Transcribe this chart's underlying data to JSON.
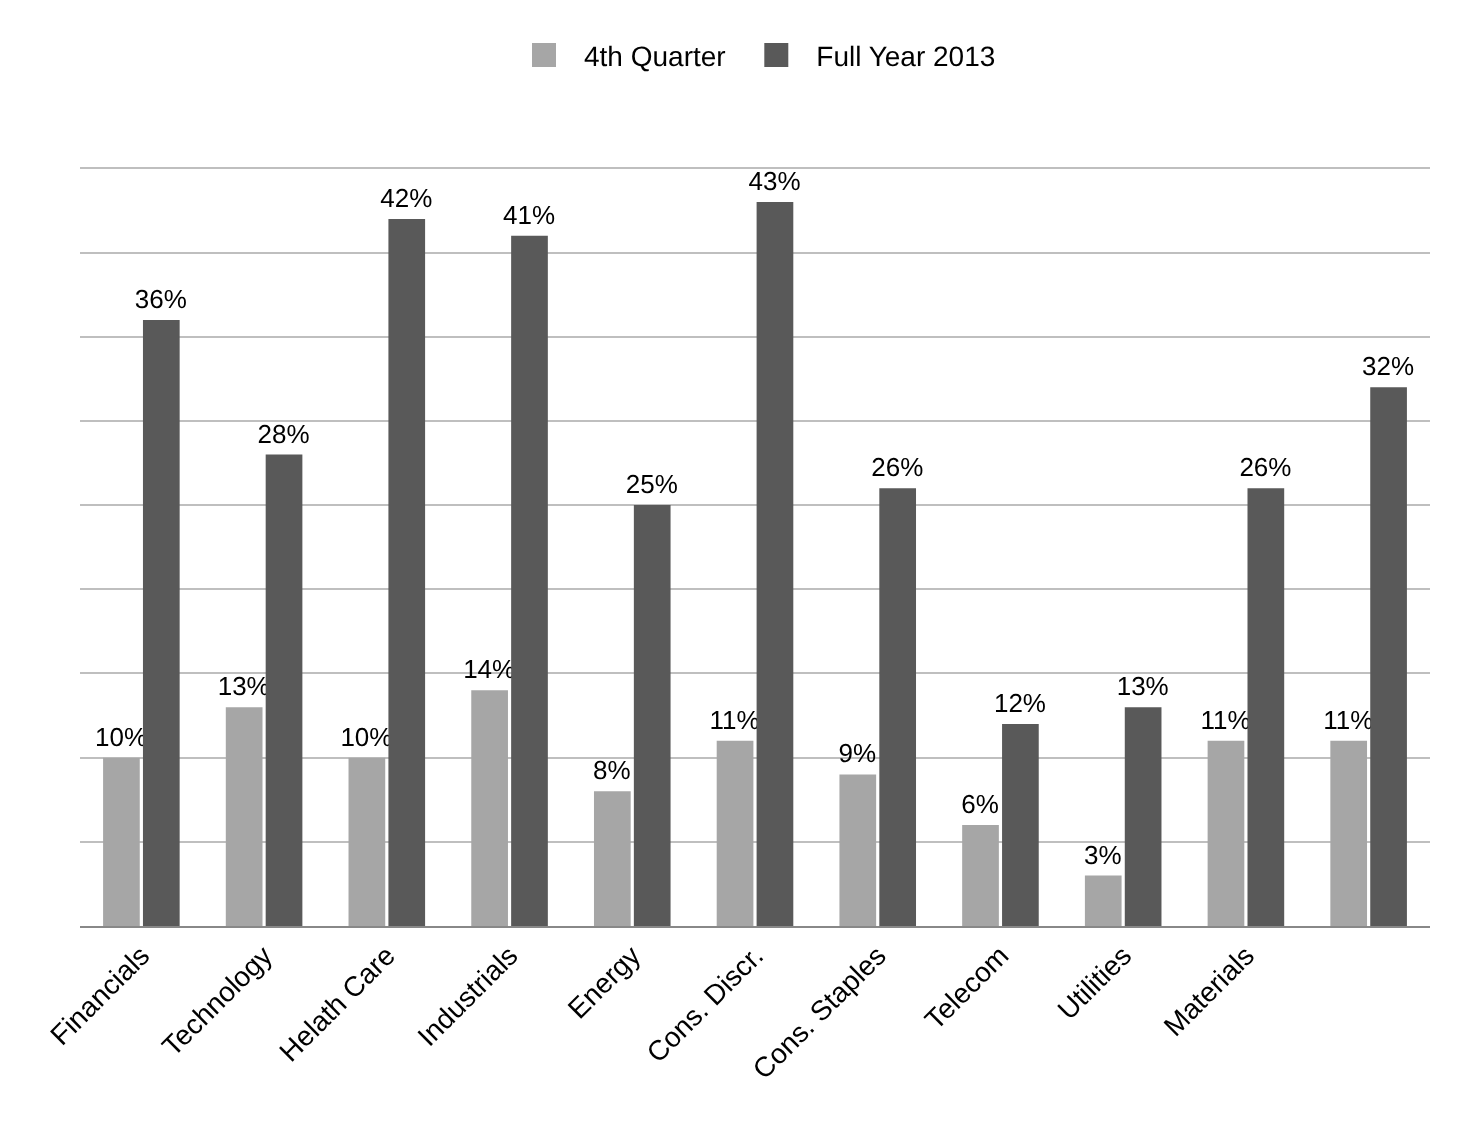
{
  "chart_data": {
    "type": "bar",
    "categories": [
      "Financials",
      "Technology",
      "Helath Care",
      "Industrials",
      "Energy",
      "Cons. Discr.",
      "Cons. Staples",
      "Telecom",
      "Utilities",
      "Materials",
      null
    ],
    "series": [
      {
        "name": "4th Quarter",
        "color": "#a6a6a6",
        "values": [
          10,
          13,
          10,
          14,
          8,
          11,
          9,
          6,
          3,
          11,
          11
        ],
        "value_labels": [
          "10%",
          "13%",
          "10%",
          "14%",
          "8%",
          "11%",
          "9%",
          "6%",
          "3%",
          "11%",
          "11%"
        ]
      },
      {
        "name": "Full Year 2013",
        "color": "#595959",
        "values": [
          36,
          28,
          42,
          41,
          25,
          43,
          26,
          12,
          13,
          26,
          32
        ],
        "value_labels": [
          "36%",
          "28%",
          "42%",
          "41%",
          "25%",
          "43%",
          "26%",
          "12%",
          "13%",
          "26%",
          "32%"
        ]
      }
    ],
    "tick_labels": "x",
    "grid": "y",
    "legend": "top"
  }
}
